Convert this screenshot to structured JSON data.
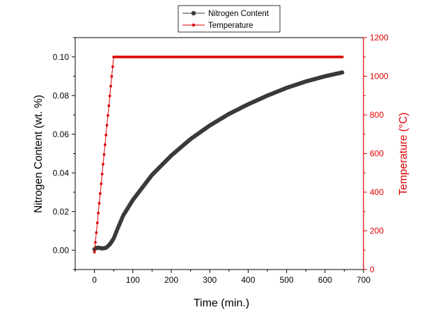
{
  "chart_data": {
    "type": "line",
    "title": "",
    "xlabel": "Time (min.)",
    "ylabel_left": "Nitrogen Content (wt. %)",
    "ylabel_right": "Temperature (°C)",
    "xlim": [
      -50,
      700
    ],
    "ylim_left": [
      -0.01,
      0.11
    ],
    "ylim_right": [
      0,
      1200
    ],
    "xticks": [
      0,
      100,
      200,
      300,
      400,
      500,
      600,
      700
    ],
    "yticks_left": [
      0.0,
      0.02,
      0.04,
      0.06,
      0.08,
      0.1
    ],
    "yticks_left_labels": [
      "0.00",
      "0.02",
      "0.04",
      "0.06",
      "0.08",
      "0.10"
    ],
    "yticks_right": [
      0,
      200,
      400,
      600,
      800,
      1000,
      1200
    ],
    "grid": false,
    "legend_position": "top-center",
    "series": [
      {
        "name": "Nitrogen Content",
        "axis": "left",
        "color": "#3a3a3a",
        "x": [
          0,
          5,
          10,
          20,
          30,
          40,
          50,
          60,
          75,
          100,
          150,
          200,
          250,
          300,
          350,
          400,
          450,
          500,
          550,
          600,
          645
        ],
        "y": [
          0.0005,
          0.0012,
          0.0013,
          0.0009,
          0.0012,
          0.003,
          0.006,
          0.011,
          0.018,
          0.026,
          0.039,
          0.049,
          0.0575,
          0.0645,
          0.0705,
          0.0755,
          0.08,
          0.084,
          0.0873,
          0.09,
          0.092
        ]
      },
      {
        "name": "Temperature",
        "axis": "right",
        "color": "#dd0000",
        "x": [
          0,
          50,
          645
        ],
        "y": [
          90,
          1100,
          1100
        ]
      }
    ]
  }
}
